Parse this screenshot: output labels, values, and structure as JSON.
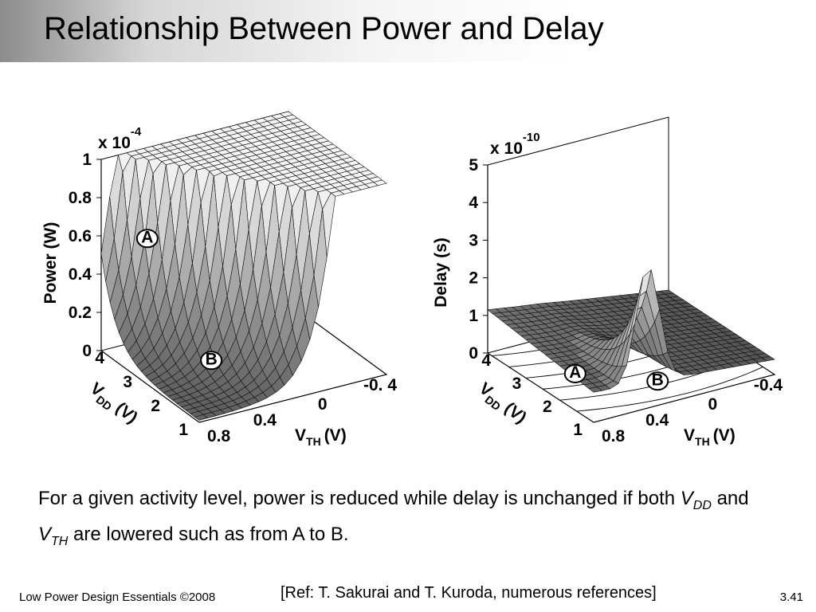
{
  "title": "Relationship Between Power and Delay",
  "plots": [
    {
      "multiplier": {
        "base": "x 10",
        "exponent": "-4"
      },
      "z_label": "Power (W)",
      "z_ticks": [
        "0",
        "0.2",
        "0.4",
        "0.6",
        "0.8",
        "1"
      ],
      "vdd_label": {
        "main": "V",
        "sub": "DD",
        "unit": "(V)"
      },
      "vdd_ticks": [
        "1",
        "2",
        "3",
        "4"
      ],
      "vth_label": {
        "main": "V",
        "sub": "TH",
        "unit": "(V)"
      },
      "vth_ticks": [
        "0.8",
        "0.4",
        "0",
        "-0. 4"
      ],
      "markers": [
        "A",
        "B"
      ]
    },
    {
      "multiplier": {
        "base": "x 10",
        "exponent": "-10"
      },
      "z_label": "Delay (s)",
      "z_ticks": [
        "0",
        "1",
        "2",
        "3",
        "4",
        "5"
      ],
      "vdd_label": {
        "main": "V",
        "sub": "DD",
        "unit": "(V)"
      },
      "vdd_ticks": [
        "1",
        "2",
        "3",
        "4"
      ],
      "vth_label": {
        "main": "V",
        "sub": "TH",
        "unit": "(V)"
      },
      "vth_ticks": [
        "0.8",
        "0.4",
        "0",
        "-0.4"
      ],
      "markers": [
        "A",
        "B"
      ]
    }
  ],
  "caption": {
    "text1": "For a given activity level, power is reduced while delay is unchanged if both",
    "v1": "V",
    "sub1": "DD",
    "and": "and",
    "v2": "V",
    "sub2": "TH",
    "text2": "are lowered such as from A to B."
  },
  "reference": "[Ref: T. Sakurai and T. Kuroda, numerous references]",
  "footer": "Low Power Design Essentials ©2008",
  "page_number": "3.41"
}
